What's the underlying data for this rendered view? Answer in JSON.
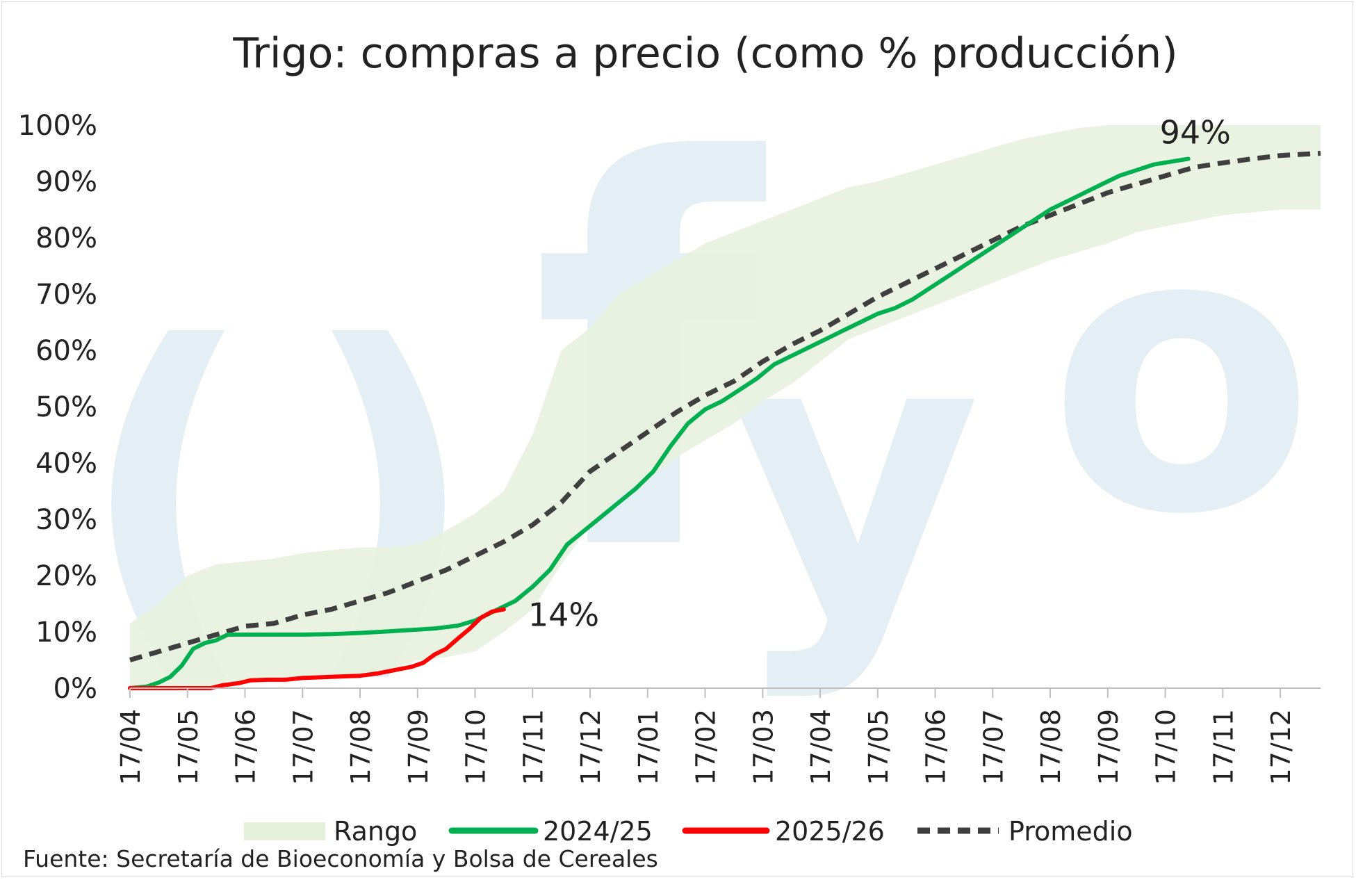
{
  "chart_data": {
    "type": "line",
    "title": "Trigo: compras a precio (como % producción)",
    "source": "Fuente: Secretaría de Bioeconomía y Bolsa de Cereales",
    "watermark": "fyo",
    "ylim": [
      0,
      100
    ],
    "y_ticks": [
      "0%",
      "10%",
      "20%",
      "30%",
      "40%",
      "50%",
      "60%",
      "70%",
      "80%",
      "90%",
      "100%"
    ],
    "x_ticks": [
      "17/04",
      "17/05",
      "17/06",
      "17/07",
      "17/08",
      "17/09",
      "17/10",
      "17/11",
      "17/12",
      "17/01",
      "17/02",
      "17/03",
      "17/04",
      "17/05",
      "17/06",
      "17/07",
      "17/08",
      "17/09",
      "17/10",
      "17/11",
      "17/12"
    ],
    "xlim": [
      0,
      20.7
    ],
    "grid": false,
    "legend_position": "bottom",
    "colors": {
      "rango": "#e6f1dc",
      "s2024": "#00b050",
      "s2025": "#ff0000",
      "promedio": "#3f3f3f",
      "watermark": "#e3eff5"
    },
    "rango": {
      "name": "Rango",
      "x": [
        0,
        0.5,
        1,
        1.5,
        2,
        2.5,
        3,
        3.5,
        4,
        4.5,
        5,
        5.5,
        6,
        6.5,
        7,
        7.5,
        8,
        8.5,
        9,
        9.5,
        10,
        10.5,
        11,
        11.5,
        12,
        12.5,
        13,
        13.5,
        14,
        14.5,
        15,
        15.5,
        16,
        16.5,
        17,
        17.5,
        18,
        18.5,
        19,
        19.5,
        20,
        20.7
      ],
      "upper": [
        11.5,
        15,
        20,
        22,
        22.5,
        23,
        24,
        24.5,
        25,
        25,
        25.5,
        28,
        31,
        35,
        45,
        60,
        64,
        70,
        73,
        76,
        79,
        81,
        83,
        85,
        87,
        89,
        90,
        91.5,
        93,
        94.5,
        96,
        97.5,
        98.5,
        99.5,
        100,
        100,
        100,
        100,
        100,
        100,
        100,
        100
      ],
      "lower": [
        0,
        0,
        0,
        0.5,
        1,
        1.3,
        1.5,
        2,
        2.5,
        3,
        5,
        5.5,
        6.5,
        10,
        14,
        22,
        29,
        34,
        37,
        41,
        44,
        47,
        51,
        54,
        58,
        62,
        64,
        66,
        68,
        70,
        72,
        74,
        76,
        77.5,
        79,
        81,
        82,
        83,
        84,
        84.5,
        85,
        85
      ]
    },
    "series": [
      {
        "name": "2024/25",
        "label": "94%",
        "x": [
          0,
          0.3,
          0.5,
          0.7,
          0.9,
          1.1,
          1.3,
          1.5,
          1.7,
          2,
          2.5,
          3,
          3.5,
          4,
          4.5,
          5,
          5.3,
          5.7,
          6,
          6.3,
          6.7,
          7,
          7.3,
          7.6,
          7.9,
          8.2,
          8.5,
          8.8,
          9.1,
          9.4,
          9.7,
          10,
          10.3,
          10.6,
          10.9,
          11.2,
          11.5,
          11.8,
          12.1,
          12.4,
          12.7,
          13,
          13.3,
          13.6,
          13.9,
          14.2,
          14.5,
          14.8,
          15.1,
          15.4,
          15.7,
          16,
          16.3,
          16.6,
          16.9,
          17.2,
          17.5,
          17.8,
          18.1,
          18.4
        ],
        "y": [
          0,
          0.3,
          1,
          2,
          4,
          7,
          8,
          8.5,
          9.5,
          9.5,
          9.5,
          9.5,
          9.6,
          9.8,
          10.1,
          10.4,
          10.6,
          11.1,
          12,
          13.5,
          15.5,
          18,
          21,
          25.5,
          28,
          30.5,
          33,
          35.5,
          38.5,
          43,
          47,
          49.5,
          51,
          53,
          55,
          57.5,
          59,
          60.5,
          62,
          63.5,
          65,
          66.5,
          67.5,
          69,
          71,
          73,
          75,
          77,
          79,
          81,
          83,
          85,
          86.5,
          88,
          89.5,
          91,
          92,
          93,
          93.5,
          94
        ]
      },
      {
        "name": "2025/26",
        "label": "14%",
        "x": [
          0,
          0.5,
          1,
          1.4,
          1.6,
          1.9,
          2.1,
          2.4,
          2.7,
          3,
          3.5,
          4,
          4.3,
          4.6,
          4.9,
          5.1,
          5.3,
          5.5,
          5.7,
          5.9,
          6.1,
          6.3,
          6.5
        ],
        "y": [
          0,
          0,
          0,
          0,
          0.5,
          0.9,
          1.4,
          1.5,
          1.5,
          1.8,
          2,
          2.2,
          2.6,
          3.2,
          3.8,
          4.5,
          6,
          7,
          8.8,
          10.5,
          12.5,
          13.6,
          14
        ]
      },
      {
        "name": "Promedio",
        "x": [
          0,
          0.5,
          1,
          1.5,
          2,
          2.5,
          3,
          3.5,
          4,
          4.5,
          5,
          5.5,
          6,
          6.5,
          7,
          7.5,
          8,
          8.5,
          9,
          9.5,
          10,
          10.5,
          11,
          11.5,
          12,
          12.5,
          13,
          13.5,
          14,
          14.5,
          15,
          15.5,
          16,
          16.5,
          17,
          17.5,
          18,
          18.5,
          19,
          19.5,
          20,
          20.7
        ],
        "y": [
          5,
          6.5,
          8,
          9.5,
          11,
          11.5,
          13,
          14,
          15.5,
          17,
          19,
          21,
          23.5,
          26,
          29,
          33,
          38.5,
          42,
          45.5,
          49,
          52,
          54.5,
          58,
          61,
          63.5,
          66.5,
          69.5,
          72,
          74.5,
          77,
          79.5,
          82,
          84,
          86,
          88,
          89.5,
          91,
          92.5,
          93.3,
          94,
          94.6,
          95
        ]
      }
    ],
    "legend": [
      "Rango",
      "2024/25",
      "2025/26",
      "Promedio"
    ]
  }
}
